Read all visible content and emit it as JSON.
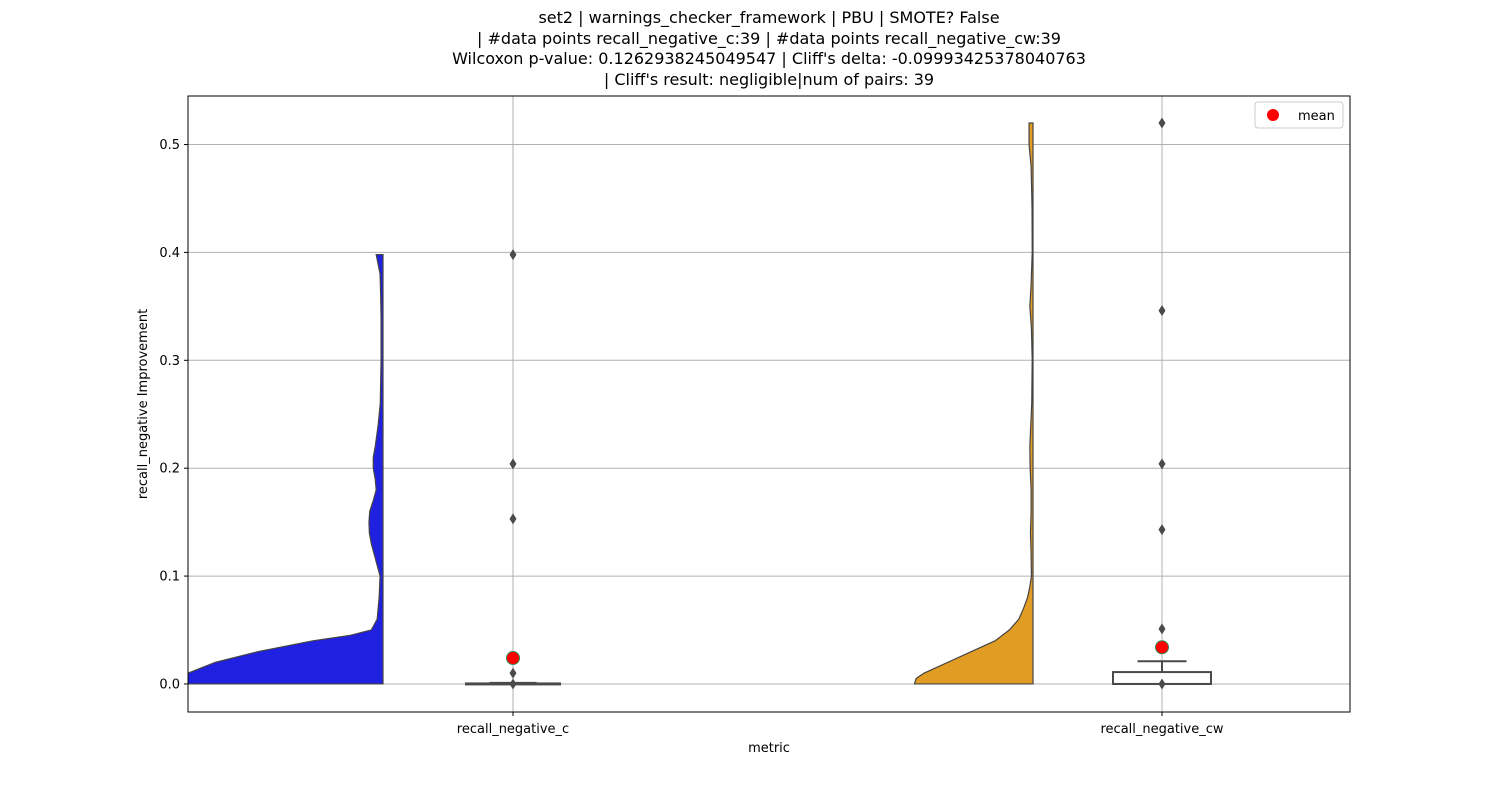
{
  "title_lines": [
    "set2 | warnings_checker_framework | PBU | SMOTE? False",
    "| #data points recall_negative_c:39 | #data points recall_negative_cw:39",
    "Wilcoxon p-value: 0.1262938245049547 | Cliff's delta: -0.09993425378040763",
    "| Cliff's result: negligible|num of pairs: 39"
  ],
  "chart_data": {
    "type": "violin+box",
    "xlabel": "metric",
    "ylabel": "recall_negative Improvement",
    "ylim": [
      -0.026,
      0.545
    ],
    "yticks": [
      "0.0",
      "0.1",
      "0.2",
      "0.3",
      "0.4",
      "0.5"
    ],
    "grid": true,
    "legend": {
      "placement": "top-right",
      "entries": [
        "mean"
      ]
    },
    "categories": [
      "recall_negative_c",
      "recall_negative_cw"
    ],
    "colors": {
      "recall_negative_c": "#2020e0",
      "recall_negative_cw": "#e19c24",
      "mean": "#ff0000",
      "mean_edge": "#2e8b57",
      "outlier": "#4a4a4a",
      "box_edge": "#4a4a4a",
      "grid": "#b0b0b0"
    },
    "series": [
      {
        "name": "recall_negative_c",
        "mean": 0.024,
        "box": {
          "q1": 0.0,
          "median": 0.0,
          "q3": 0.0005,
          "whisker_low": 0.0,
          "whisker_high": 0.001
        },
        "outliers": [
          0.398,
          0.204,
          0.153,
          0.01,
          0.0
        ],
        "violin": [
          [
            0.0,
            1.0
          ],
          [
            0.01,
            1.0
          ],
          [
            0.02,
            0.86
          ],
          [
            0.03,
            0.64
          ],
          [
            0.04,
            0.36
          ],
          [
            0.045,
            0.17
          ],
          [
            0.05,
            0.06
          ],
          [
            0.06,
            0.03
          ],
          [
            0.08,
            0.02
          ],
          [
            0.1,
            0.015
          ],
          [
            0.11,
            0.03
          ],
          [
            0.12,
            0.045
          ],
          [
            0.13,
            0.06
          ],
          [
            0.14,
            0.07
          ],
          [
            0.15,
            0.072
          ],
          [
            0.16,
            0.068
          ],
          [
            0.17,
            0.05
          ],
          [
            0.18,
            0.035
          ],
          [
            0.19,
            0.04
          ],
          [
            0.2,
            0.05
          ],
          [
            0.21,
            0.05
          ],
          [
            0.22,
            0.04
          ],
          [
            0.24,
            0.025
          ],
          [
            0.26,
            0.014
          ],
          [
            0.3,
            0.01
          ],
          [
            0.34,
            0.01
          ],
          [
            0.36,
            0.012
          ],
          [
            0.38,
            0.015
          ],
          [
            0.398,
            0.035
          ]
        ]
      },
      {
        "name": "recall_negative_cw",
        "mean": 0.034,
        "box": {
          "q1": 0.0,
          "median": 0.0,
          "q3": 0.011,
          "whisker_low": 0.0,
          "whisker_high": 0.021
        },
        "outliers": [
          0.52,
          0.346,
          0.204,
          0.143,
          0.051,
          0.0
        ],
        "violin": [
          [
            0.0,
            0.75
          ],
          [
            0.005,
            0.74
          ],
          [
            0.01,
            0.69
          ],
          [
            0.02,
            0.54
          ],
          [
            0.03,
            0.39
          ],
          [
            0.04,
            0.24
          ],
          [
            0.05,
            0.15
          ],
          [
            0.06,
            0.09
          ],
          [
            0.07,
            0.06
          ],
          [
            0.08,
            0.035
          ],
          [
            0.09,
            0.02
          ],
          [
            0.1,
            0.01
          ],
          [
            0.12,
            0.012
          ],
          [
            0.14,
            0.016
          ],
          [
            0.16,
            0.012
          ],
          [
            0.18,
            0.012
          ],
          [
            0.2,
            0.018
          ],
          [
            0.22,
            0.02
          ],
          [
            0.24,
            0.014
          ],
          [
            0.26,
            0.008
          ],
          [
            0.3,
            0.005
          ],
          [
            0.33,
            0.01
          ],
          [
            0.35,
            0.02
          ],
          [
            0.37,
            0.012
          ],
          [
            0.4,
            0.005
          ],
          [
            0.44,
            0.006
          ],
          [
            0.48,
            0.012
          ],
          [
            0.5,
            0.025
          ],
          [
            0.52,
            0.025
          ]
        ]
      }
    ]
  }
}
